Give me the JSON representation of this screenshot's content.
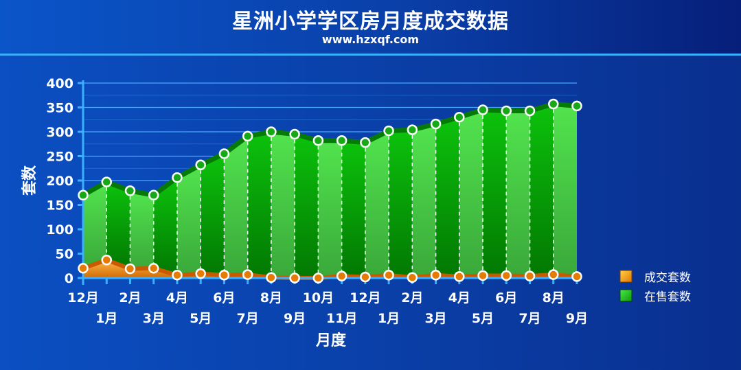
{
  "title": "星洲小学学区房月度成交数据",
  "subtitle": "www.hzxqf.com",
  "colors": {
    "sold": "#f08c10",
    "listed": "#22c41e",
    "accent": "#3ab0ff"
  },
  "chart_data": {
    "type": "area",
    "xlabel": "月度",
    "ylabel": "套数",
    "ylim": [
      0,
      400
    ],
    "yticks": [
      "0",
      "50",
      "100",
      "150",
      "200",
      "250",
      "300",
      "350",
      "400"
    ],
    "categories": [
      "12月",
      "1月",
      "2月",
      "3月",
      "4月",
      "5月",
      "6月",
      "7月",
      "8月",
      "9月",
      "10月",
      "11月",
      "12月",
      "1月",
      "2月",
      "3月",
      "4月",
      "5月",
      "6月",
      "7月",
      "8月",
      "9月"
    ],
    "legend_position": "right",
    "series": [
      {
        "name": "成交套数",
        "values": [
          20,
          37,
          19,
          20,
          6,
          9,
          6,
          7,
          1,
          0,
          0,
          4,
          2,
          6,
          1,
          6,
          3,
          5,
          5,
          4,
          7,
          3
        ]
      },
      {
        "name": "在售套数",
        "values": [
          170,
          197,
          179,
          170,
          206,
          232,
          255,
          291,
          300,
          295,
          282,
          282,
          278,
          302,
          304,
          316,
          330,
          345,
          343,
          343,
          357,
          353
        ]
      }
    ]
  }
}
